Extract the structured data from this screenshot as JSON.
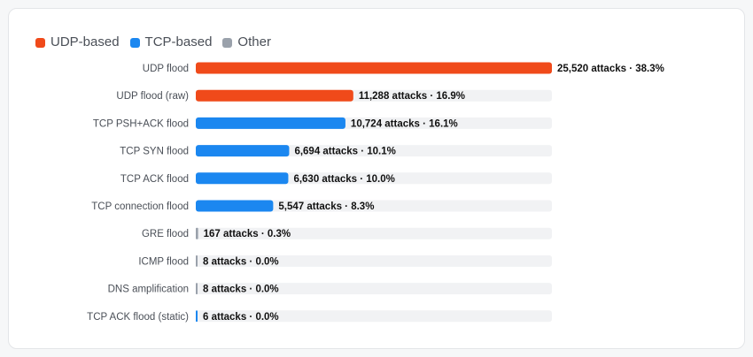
{
  "legend": [
    {
      "label": "UDP-based",
      "color": "#f04a1a"
    },
    {
      "label": "TCP-based",
      "color": "#1b87f0"
    },
    {
      "label": "Other",
      "color": "#9aa1ab"
    }
  ],
  "track_color": "#f1f2f4",
  "chart_data": {
    "type": "bar",
    "orientation": "horizontal",
    "xlim": [
      0,
      25520
    ],
    "categories": [
      "UDP flood",
      "UDP flood (raw)",
      "TCP PSH+ACK flood",
      "TCP SYN flood",
      "TCP ACK flood",
      "TCP connection flood",
      "GRE flood",
      "ICMP flood",
      "DNS amplification",
      "TCP ACK flood (static)"
    ],
    "values": [
      25520,
      11288,
      10724,
      6694,
      6630,
      5547,
      167,
      8,
      8,
      6
    ],
    "percents": [
      38.3,
      16.9,
      16.1,
      10.1,
      10.0,
      8.3,
      0.3,
      0.0,
      0.0,
      0.0
    ],
    "groups": [
      "UDP-based",
      "UDP-based",
      "TCP-based",
      "TCP-based",
      "TCP-based",
      "TCP-based",
      "Other",
      "Other",
      "Other",
      "TCP-based"
    ],
    "value_labels": [
      "25,520 attacks · 38.3%",
      "11,288 attacks · 16.9%",
      "10,724 attacks · 16.1%",
      "6,694 attacks · 10.1%",
      "6,630 attacks · 10.0%",
      "5,547 attacks · 8.3%",
      "167 attacks · 0.3%",
      "8 attacks · 0.0%",
      "8 attacks · 0.0%",
      "6 attacks · 0.0%"
    ],
    "legend_position": "top-left",
    "grid": false
  }
}
